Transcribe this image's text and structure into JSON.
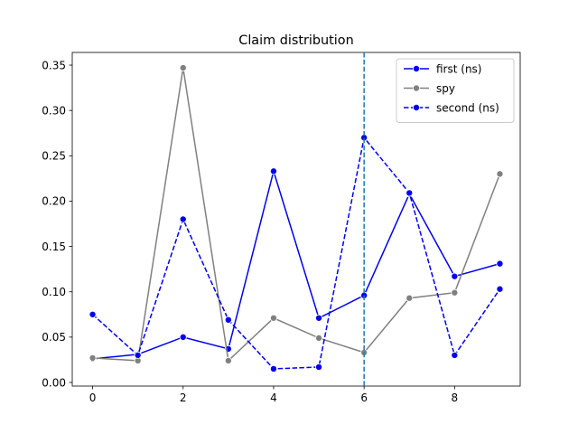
{
  "chart_data": {
    "type": "line",
    "title": "Claim distribution",
    "xlabel": "",
    "ylabel": "",
    "xlim": [
      -0.45,
      9.45
    ],
    "ylim": [
      -0.004,
      0.364
    ],
    "x_ticks": [
      0,
      2,
      4,
      6,
      8
    ],
    "y_ticks": [
      0.0,
      0.05,
      0.1,
      0.15,
      0.2,
      0.25,
      0.3,
      0.35
    ],
    "y_tick_labels": [
      "0.00",
      "0.05",
      "0.10",
      "0.15",
      "0.20",
      "0.25",
      "0.30",
      "0.35"
    ],
    "grid": false,
    "legend_position": "top-right",
    "x": [
      0,
      1,
      2,
      3,
      4,
      5,
      6,
      7,
      8,
      9
    ],
    "series": [
      {
        "name": "first (ns)",
        "color": "#0000ee",
        "style": "solid",
        "values": [
          0.026,
          0.031,
          0.05,
          0.037,
          0.233,
          0.071,
          0.096,
          0.208,
          0.117,
          0.131
        ]
      },
      {
        "name": "spy",
        "color": "#808080",
        "style": "solid",
        "values": [
          0.027,
          0.024,
          0.347,
          0.024,
          0.071,
          0.049,
          0.033,
          0.093,
          0.099,
          0.23
        ]
      },
      {
        "name": "second (ns)",
        "color": "#0000ee",
        "style": "dashed",
        "values": [
          0.075,
          0.03,
          0.18,
          0.069,
          0.015,
          0.017,
          0.27,
          0.209,
          0.03,
          0.103
        ]
      }
    ],
    "vline": {
      "x": 6,
      "color": "#1f77b4",
      "style": "dashed"
    }
  }
}
